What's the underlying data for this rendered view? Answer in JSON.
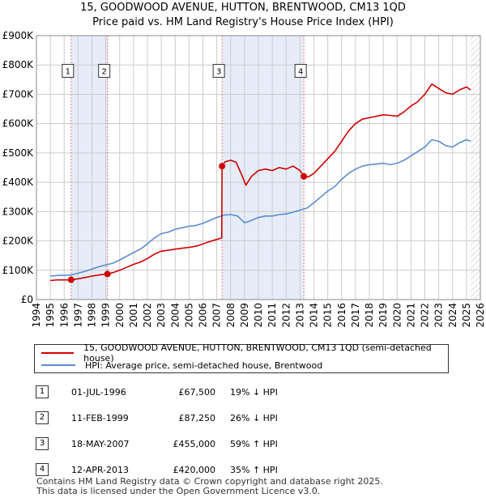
{
  "title_line1": "15, GOODWOOD AVENUE, HUTTON, BRENTWOOD, CM13 1QD",
  "title_line2": "Price paid vs. HM Land Registry's House Price Index (HPI)",
  "colors": {
    "property": "#cc0000",
    "hpi": "#5b8ccf",
    "shade": "#e6ecf8",
    "grid": "#cccccc",
    "vline": "#e08080"
  },
  "chart_data": {
    "type": "line",
    "title": "15, GOODWOOD AVENUE, HUTTON, BRENTWOOD, CM13 1QD",
    "subtitle": "Price paid vs. HM Land Registry's House Price Index (HPI)",
    "xlim": [
      1994,
      2026
    ],
    "ylim": [
      0,
      900000
    ],
    "x_ticks": [
      1994,
      1995,
      1996,
      1997,
      1998,
      1999,
      2000,
      2001,
      2002,
      2003,
      2004,
      2005,
      2006,
      2007,
      2008,
      2009,
      2010,
      2011,
      2012,
      2013,
      2014,
      2015,
      2016,
      2017,
      2018,
      2019,
      2020,
      2021,
      2022,
      2023,
      2024,
      2025,
      2026
    ],
    "y_ticks": [
      {
        "value": 0,
        "label": "£0"
      },
      {
        "value": 100000,
        "label": "£100K"
      },
      {
        "value": 200000,
        "label": "£200K"
      },
      {
        "value": 300000,
        "label": "£300K"
      },
      {
        "value": 400000,
        "label": "£400K"
      },
      {
        "value": 500000,
        "label": "£500K"
      },
      {
        "value": 600000,
        "label": "£600K"
      },
      {
        "value": 700000,
        "label": "£700K"
      },
      {
        "value": 800000,
        "label": "£800K"
      },
      {
        "value": 900000,
        "label": "£900K"
      }
    ],
    "shaded_ranges": [
      [
        1996.5,
        1999.12
      ],
      [
        2007.38,
        2013.28
      ]
    ],
    "data_end": 2025.3,
    "series": [
      {
        "name": "15, GOODWOOD AVENUE, HUTTON, BRENTWOOD, CM13 1QD (semi-detached house)",
        "color": "#cc0000",
        "points": [
          [
            1995.0,
            65000
          ],
          [
            1995.5,
            67000
          ],
          [
            1996.0,
            67000
          ],
          [
            1996.5,
            67500
          ],
          [
            1997.0,
            71000
          ],
          [
            1997.5,
            75000
          ],
          [
            1998.0,
            80000
          ],
          [
            1998.5,
            84000
          ],
          [
            1999.12,
            87250
          ],
          [
            1999.5,
            92000
          ],
          [
            2000.0,
            100000
          ],
          [
            2000.5,
            110000
          ],
          [
            2001.0,
            120000
          ],
          [
            2001.5,
            128000
          ],
          [
            2002.0,
            140000
          ],
          [
            2002.5,
            155000
          ],
          [
            2003.0,
            165000
          ],
          [
            2003.5,
            168000
          ],
          [
            2004.0,
            172000
          ],
          [
            2004.5,
            175000
          ],
          [
            2005.0,
            178000
          ],
          [
            2005.5,
            182000
          ],
          [
            2006.0,
            190000
          ],
          [
            2006.5,
            198000
          ],
          [
            2007.0,
            205000
          ],
          [
            2007.36,
            210000
          ],
          [
            2007.38,
            455000
          ],
          [
            2007.6,
            470000
          ],
          [
            2008.0,
            475000
          ],
          [
            2008.4,
            468000
          ],
          [
            2008.8,
            425000
          ],
          [
            2009.1,
            390000
          ],
          [
            2009.5,
            420000
          ],
          [
            2010.0,
            440000
          ],
          [
            2010.5,
            445000
          ],
          [
            2011.0,
            440000
          ],
          [
            2011.5,
            450000
          ],
          [
            2012.0,
            445000
          ],
          [
            2012.5,
            455000
          ],
          [
            2013.0,
            440000
          ],
          [
            2013.28,
            420000
          ],
          [
            2013.6,
            418000
          ],
          [
            2014.0,
            430000
          ],
          [
            2014.5,
            455000
          ],
          [
            2015.0,
            480000
          ],
          [
            2015.5,
            505000
          ],
          [
            2016.0,
            540000
          ],
          [
            2016.5,
            575000
          ],
          [
            2017.0,
            600000
          ],
          [
            2017.5,
            615000
          ],
          [
            2018.0,
            620000
          ],
          [
            2018.5,
            625000
          ],
          [
            2019.0,
            630000
          ],
          [
            2019.5,
            628000
          ],
          [
            2020.0,
            625000
          ],
          [
            2020.5,
            640000
          ],
          [
            2021.0,
            660000
          ],
          [
            2021.5,
            675000
          ],
          [
            2022.0,
            700000
          ],
          [
            2022.5,
            735000
          ],
          [
            2023.0,
            720000
          ],
          [
            2023.5,
            705000
          ],
          [
            2024.0,
            700000
          ],
          [
            2024.5,
            715000
          ],
          [
            2025.0,
            725000
          ],
          [
            2025.3,
            715000
          ]
        ]
      },
      {
        "name": "HPI: Average price, semi-detached house, Brentwood",
        "color": "#5b8ccf",
        "points": [
          [
            1995.0,
            80000
          ],
          [
            1995.5,
            82000
          ],
          [
            1996.0,
            83000
          ],
          [
            1996.5,
            84000
          ],
          [
            1997.0,
            90000
          ],
          [
            1997.5,
            96000
          ],
          [
            1998.0,
            104000
          ],
          [
            1998.5,
            112000
          ],
          [
            1999.0,
            118000
          ],
          [
            1999.5,
            124000
          ],
          [
            2000.0,
            135000
          ],
          [
            2000.5,
            148000
          ],
          [
            2001.0,
            160000
          ],
          [
            2001.5,
            172000
          ],
          [
            2002.0,
            190000
          ],
          [
            2002.5,
            210000
          ],
          [
            2003.0,
            225000
          ],
          [
            2003.5,
            230000
          ],
          [
            2004.0,
            240000
          ],
          [
            2004.5,
            245000
          ],
          [
            2005.0,
            250000
          ],
          [
            2005.5,
            253000
          ],
          [
            2006.0,
            260000
          ],
          [
            2006.5,
            270000
          ],
          [
            2007.0,
            280000
          ],
          [
            2007.5,
            288000
          ],
          [
            2008.0,
            290000
          ],
          [
            2008.5,
            285000
          ],
          [
            2009.0,
            262000
          ],
          [
            2009.5,
            270000
          ],
          [
            2010.0,
            280000
          ],
          [
            2010.5,
            285000
          ],
          [
            2011.0,
            285000
          ],
          [
            2011.5,
            290000
          ],
          [
            2012.0,
            292000
          ],
          [
            2012.5,
            298000
          ],
          [
            2013.0,
            305000
          ],
          [
            2013.5,
            312000
          ],
          [
            2014.0,
            330000
          ],
          [
            2014.5,
            350000
          ],
          [
            2015.0,
            370000
          ],
          [
            2015.5,
            385000
          ],
          [
            2016.0,
            410000
          ],
          [
            2016.5,
            430000
          ],
          [
            2017.0,
            445000
          ],
          [
            2017.5,
            455000
          ],
          [
            2018.0,
            460000
          ],
          [
            2018.5,
            462000
          ],
          [
            2019.0,
            465000
          ],
          [
            2019.5,
            460000
          ],
          [
            2020.0,
            465000
          ],
          [
            2020.5,
            475000
          ],
          [
            2021.0,
            490000
          ],
          [
            2021.5,
            505000
          ],
          [
            2022.0,
            520000
          ],
          [
            2022.5,
            545000
          ],
          [
            2023.0,
            540000
          ],
          [
            2023.5,
            525000
          ],
          [
            2024.0,
            520000
          ],
          [
            2024.5,
            535000
          ],
          [
            2025.0,
            545000
          ],
          [
            2025.3,
            540000
          ]
        ]
      }
    ],
    "sales": [
      {
        "num": "1",
        "x": 1996.5,
        "price": 67500
      },
      {
        "num": "2",
        "x": 1999.12,
        "price": 87250
      },
      {
        "num": "3",
        "x": 2007.38,
        "price": 455000
      },
      {
        "num": "4",
        "x": 2013.28,
        "price": 420000
      }
    ],
    "marker_y": 780000
  },
  "legend": {
    "property": "15, GOODWOOD AVENUE, HUTTON, BRENTWOOD, CM13 1QD (semi-detached house)",
    "hpi": "HPI: Average price, semi-detached house, Brentwood"
  },
  "sales_table": [
    {
      "num": "1",
      "date": "01-JUL-1996",
      "price": "£67,500",
      "hpi": "19% ↓ HPI"
    },
    {
      "num": "2",
      "date": "11-FEB-1999",
      "price": "£87,250",
      "hpi": "26% ↓ HPI"
    },
    {
      "num": "3",
      "date": "18-MAY-2007",
      "price": "£455,000",
      "hpi": "59% ↑ HPI"
    },
    {
      "num": "4",
      "date": "12-APR-2013",
      "price": "£420,000",
      "hpi": "35% ↑ HPI"
    }
  ],
  "footer": {
    "line1": "Contains HM Land Registry data © Crown copyright and database right 2025.",
    "line2": "This data is licensed under the Open Government Licence v3.0."
  }
}
